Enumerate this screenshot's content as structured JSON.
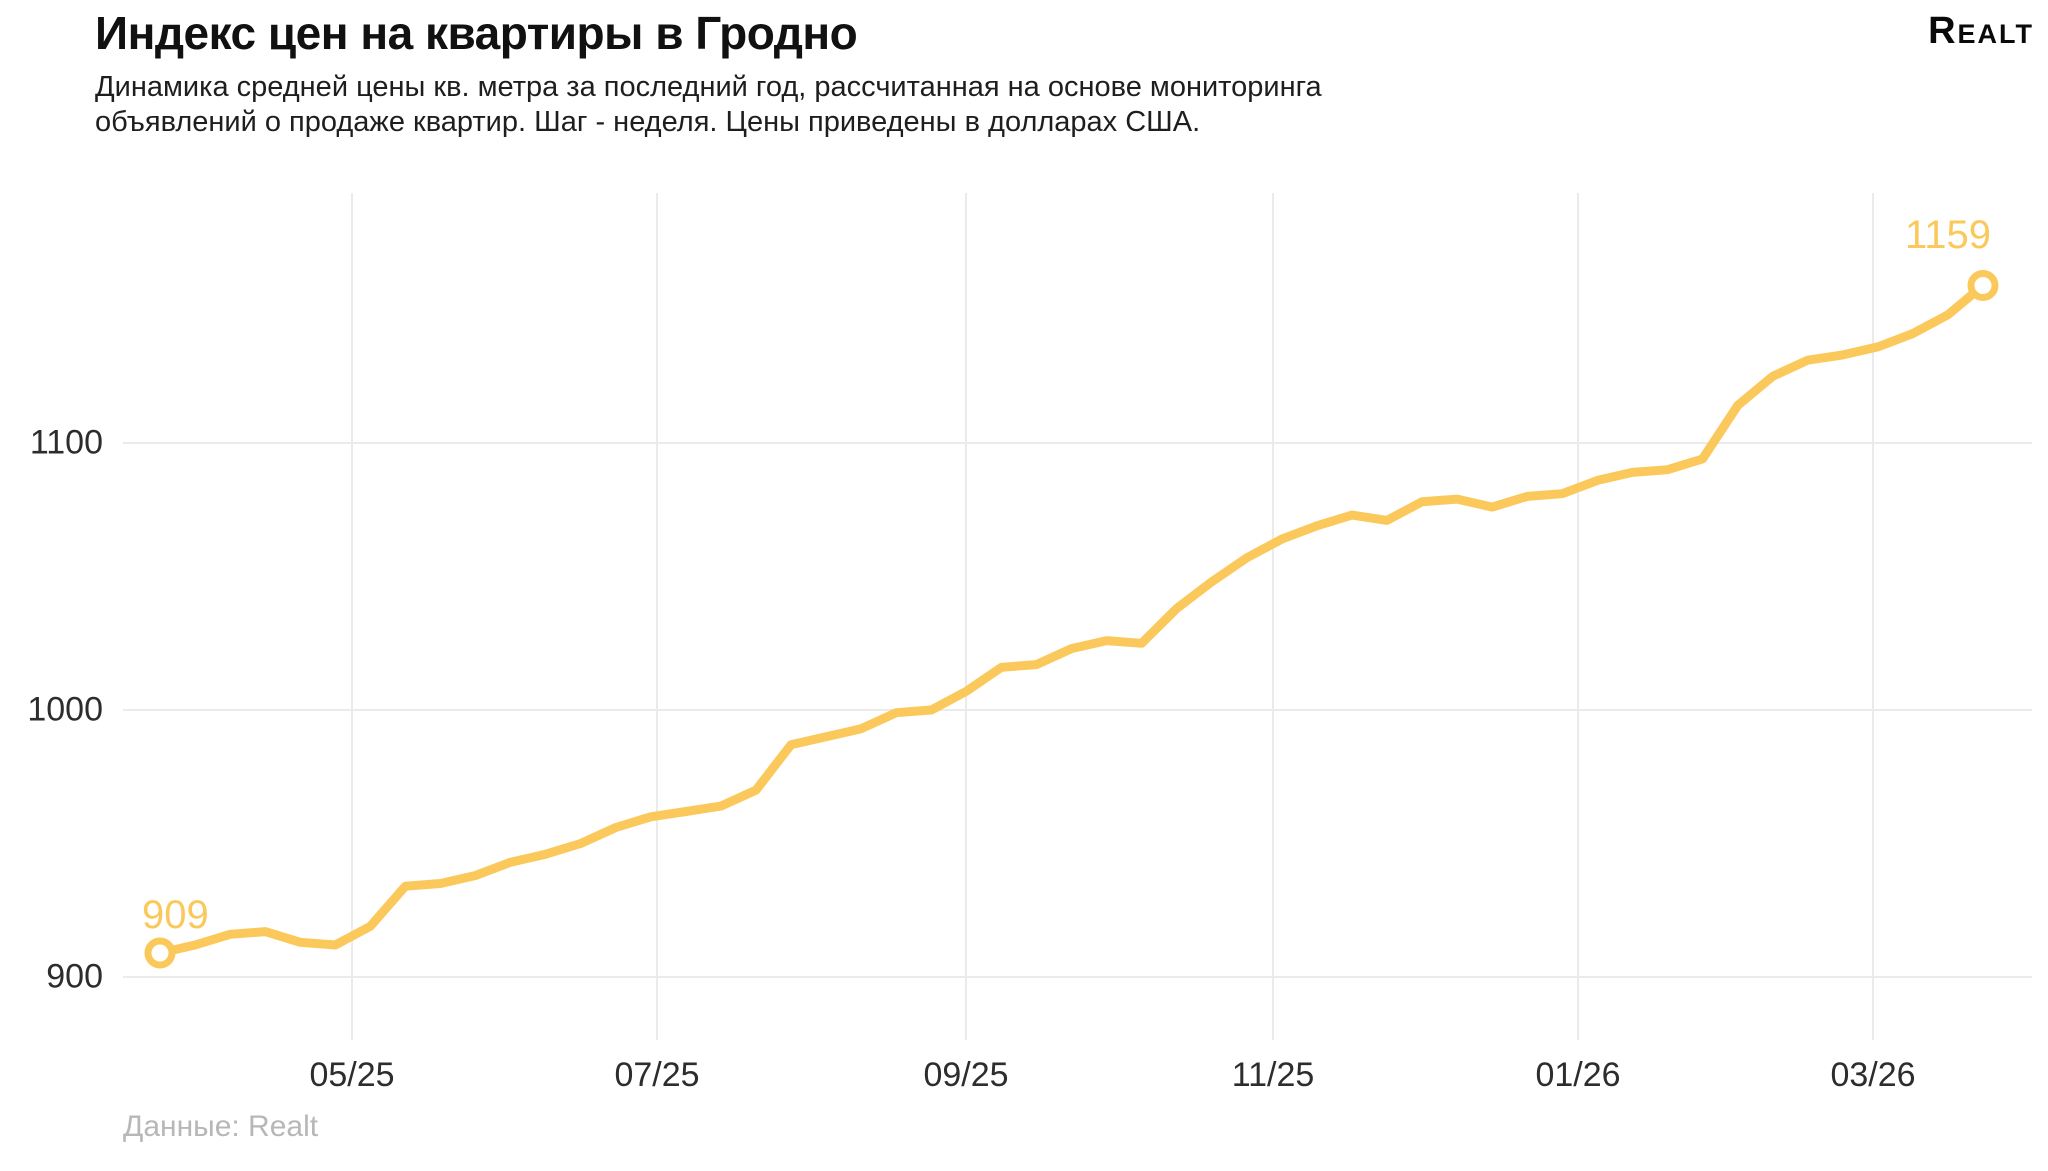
{
  "header": {
    "title": "Индекс цен на квартиры в Гродно",
    "subtitle": "Динамика средней цены кв. метра за последний год, рассчитанная на основе мониторинга объявлений о продаже квартир. Шаг - неделя. Цены приведены в долларах США.",
    "logo": "Realt"
  },
  "footer": {
    "source": "Данные: Realt"
  },
  "chart_data": {
    "type": "line",
    "title": "Индекс цен на квартиры в Гродно",
    "subtitle": "Динамика средней цены кв. метра за последний год, рассчитанная на основе мониторинга объявлений о продаже квартир. Шаг - неделя. Цены приведены в долларах США.",
    "x_step": "неделя",
    "x_tick_labels": [
      "05/25",
      "07/25",
      "09/25",
      "11/25",
      "01/26",
      "03/26"
    ],
    "y_ticks": [
      900,
      1000,
      1100
    ],
    "ylim": [
      880,
      1180
    ],
    "grid": "horizontal+vertical",
    "legend": "none",
    "first_point_label": "909",
    "last_point_label": "1159",
    "line_color": "#FBC95B",
    "grid_color": "#EBEBEB",
    "tick_color": "#2d2d2d",
    "values": [
      909,
      912,
      916,
      917,
      913,
      912,
      919,
      934,
      935,
      938,
      943,
      946,
      950,
      956,
      960,
      962,
      964,
      970,
      987,
      990,
      993,
      999,
      1000,
      1007,
      1016,
      1017,
      1023,
      1026,
      1025,
      1038,
      1048,
      1057,
      1064,
      1069,
      1073,
      1071,
      1078,
      1079,
      1076,
      1080,
      1081,
      1086,
      1089,
      1090,
      1094,
      1114,
      1125,
      1131,
      1133,
      1136,
      1141,
      1148,
      1159
    ]
  }
}
